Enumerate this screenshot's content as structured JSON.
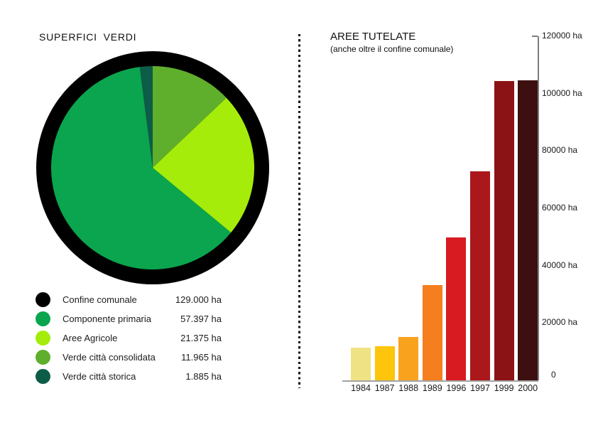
{
  "colors": {
    "background": "#ffffff",
    "text": "#1a1a1a",
    "axis_gray": "#7d7d7d",
    "baseline_gray": "#a3a3a3",
    "divider_black": "#141414"
  },
  "left_chart": {
    "title": "SUPERFICI VERDI",
    "legend": [
      {
        "label": "Confine comunale",
        "value": "129.000 ha",
        "color": "#000000"
      },
      {
        "label": "Componente primaria",
        "value": "57.397 ha",
        "color": "#0aa54e"
      },
      {
        "label": "Aree Agricole",
        "value": "21.375 ha",
        "color": "#a5ec0b"
      },
      {
        "label": "Verde città consolidata",
        "value": "11.965 ha",
        "color": "#5fae2c"
      },
      {
        "label": "Verde città storica",
        "value": "1.885 ha",
        "color": "#0d5c48"
      }
    ]
  },
  "right_chart": {
    "title": "AREE TUTELATE",
    "subtitle": "(anche oltre il confine comunale)",
    "zero_label": "0"
  },
  "chart_data": [
    {
      "type": "pie",
      "title": "SUPERFICI VERDI",
      "ring": {
        "label": "Confine comunale",
        "value_ha": 129000,
        "color": "#000000"
      },
      "slices_clockwise_from_top": [
        {
          "label": "Verde città consolidata",
          "value_ha": 11965,
          "color": "#5fae2c"
        },
        {
          "label": "Aree Agricole",
          "value_ha": 21375,
          "color": "#a5ec0b"
        },
        {
          "label": "Componente primaria",
          "value_ha": 57397,
          "color": "#0aa54e"
        },
        {
          "label": "Verde città storica",
          "value_ha": 1885,
          "color": "#0d5c48"
        }
      ],
      "legend_position": "bottom-left"
    },
    {
      "type": "bar",
      "title": "AREE TUTELATE (anche oltre il confine comunale)",
      "categories": [
        "1984",
        "1987",
        "1988",
        "1989",
        "1996",
        "1997",
        "1999",
        "2000"
      ],
      "values": [
        11500,
        11800,
        15200,
        33300,
        49800,
        73000,
        104300,
        104600
      ],
      "unit": "ha",
      "ylabel": "ha",
      "ylim": [
        0,
        120000
      ],
      "y_ticks": [
        20000,
        40000,
        60000,
        80000,
        100000,
        120000
      ],
      "y_tick_labels": [
        "20000 ha",
        "40000 ha",
        "60000 ha",
        "80000 ha",
        "100000 ha",
        "120000 ha"
      ],
      "bar_colors": [
        "#efe285",
        "#fdc50b",
        "#f9a21e",
        "#f57e1f",
        "#d71b21",
        "#ab181c",
        "#8b1215",
        "#3d0f11"
      ],
      "grid": false,
      "axis_side": "right"
    }
  ]
}
